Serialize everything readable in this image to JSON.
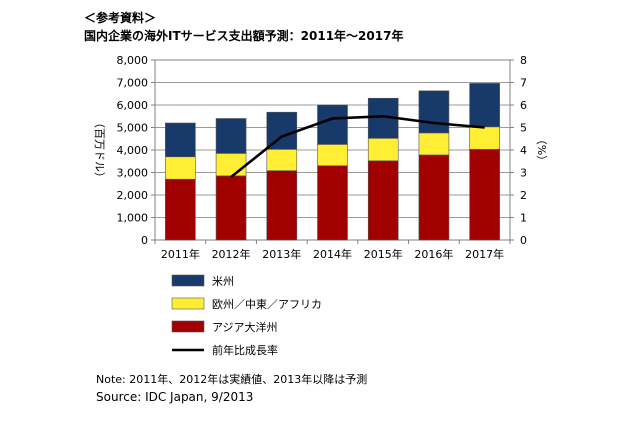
{
  "header": {
    "ref_label": "＜参考資料＞",
    "title": "国内企業の海外ITサービス支出額予測：2011年～2017年"
  },
  "chart_data": {
    "type": "bar",
    "stacked": true,
    "categories": [
      "2011年",
      "2012年",
      "2013年",
      "2014年",
      "2015年",
      "2016年",
      "2017年"
    ],
    "series": [
      {
        "name": "アジア大洋州",
        "color": "#a00000",
        "values": [
          2700,
          2850,
          3080,
          3300,
          3520,
          3780,
          4030
        ]
      },
      {
        "name": "欧州／中東／アフリカ",
        "color": "#ffee33",
        "values": [
          1000,
          1000,
          950,
          950,
          1000,
          980,
          1000
        ]
      },
      {
        "name": "米州",
        "color": "#173a6b",
        "values": [
          1500,
          1550,
          1650,
          1750,
          1780,
          1870,
          1930
        ]
      }
    ],
    "line": {
      "name": "前年比成長率",
      "color": "#000000",
      "values": [
        null,
        2.8,
        4.6,
        5.4,
        5.5,
        5.2,
        5.0
      ]
    },
    "ylabel": "（百万ドル）",
    "y2label": "（%）",
    "ylim": [
      0,
      8000
    ],
    "y2lim": [
      0,
      8
    ],
    "yticks": [
      "0",
      "1,000",
      "2,000",
      "3,000",
      "4,000",
      "5,000",
      "6,000",
      "7,000",
      "8,000"
    ],
    "y2ticks": [
      "0",
      "1",
      "2",
      "3",
      "4",
      "5",
      "6",
      "7",
      "8"
    ],
    "legend_order": [
      "米州",
      "欧州／中東／アフリカ",
      "アジア大洋州",
      "前年比成長率"
    ],
    "grid": true,
    "legend_position": "bottom"
  },
  "footer": {
    "note": "Note: 2011年、2012年は実績値、2013年以降は予測",
    "source": "Source: IDC Japan, 9/2013"
  }
}
